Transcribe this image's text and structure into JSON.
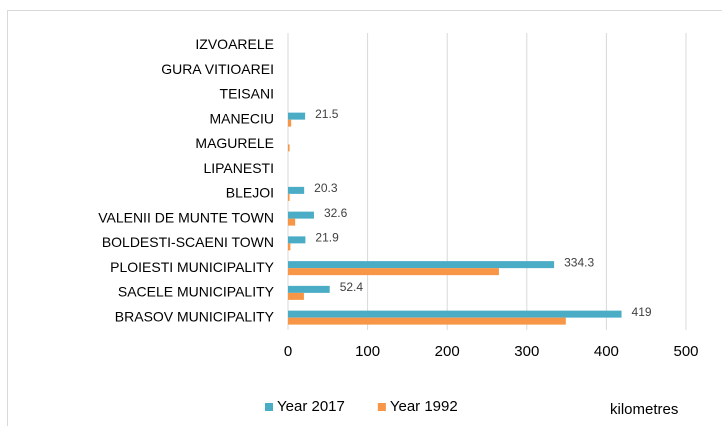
{
  "chart_data": {
    "type": "bar",
    "orientation": "horizontal",
    "x_label": "kilometres",
    "categories": [
      "IZVOARELE",
      "GURA VITIOAREI",
      "TEISANI",
      "MANECIU",
      "MAGURELE",
      "LIPANESTI",
      "BLEJOI",
      "VALENII DE MUNTE TOWN",
      "BOLDESTI-SCAENI TOWN",
      "PLOIESTI MUNICIPALITY",
      "SACELE MUNICIPALITY",
      "BRASOV MUNICIPALITY"
    ],
    "series": [
      {
        "name": "Year 2017",
        "color": "#4bacc6",
        "show_labels": true,
        "values": [
          null,
          null,
          null,
          21.5,
          null,
          null,
          20.3,
          32.6,
          21.9,
          334.3,
          52.4,
          419
        ]
      },
      {
        "name": "Year 1992",
        "color": "#f79646",
        "show_labels": false,
        "values": [
          null,
          null,
          null,
          4,
          2,
          null,
          2,
          9,
          3,
          265,
          20,
          349
        ]
      }
    ],
    "xlim": [
      0,
      500
    ],
    "xticks": [
      0,
      100,
      200,
      300,
      400,
      500
    ],
    "grid": true,
    "legend": "bottom"
  }
}
